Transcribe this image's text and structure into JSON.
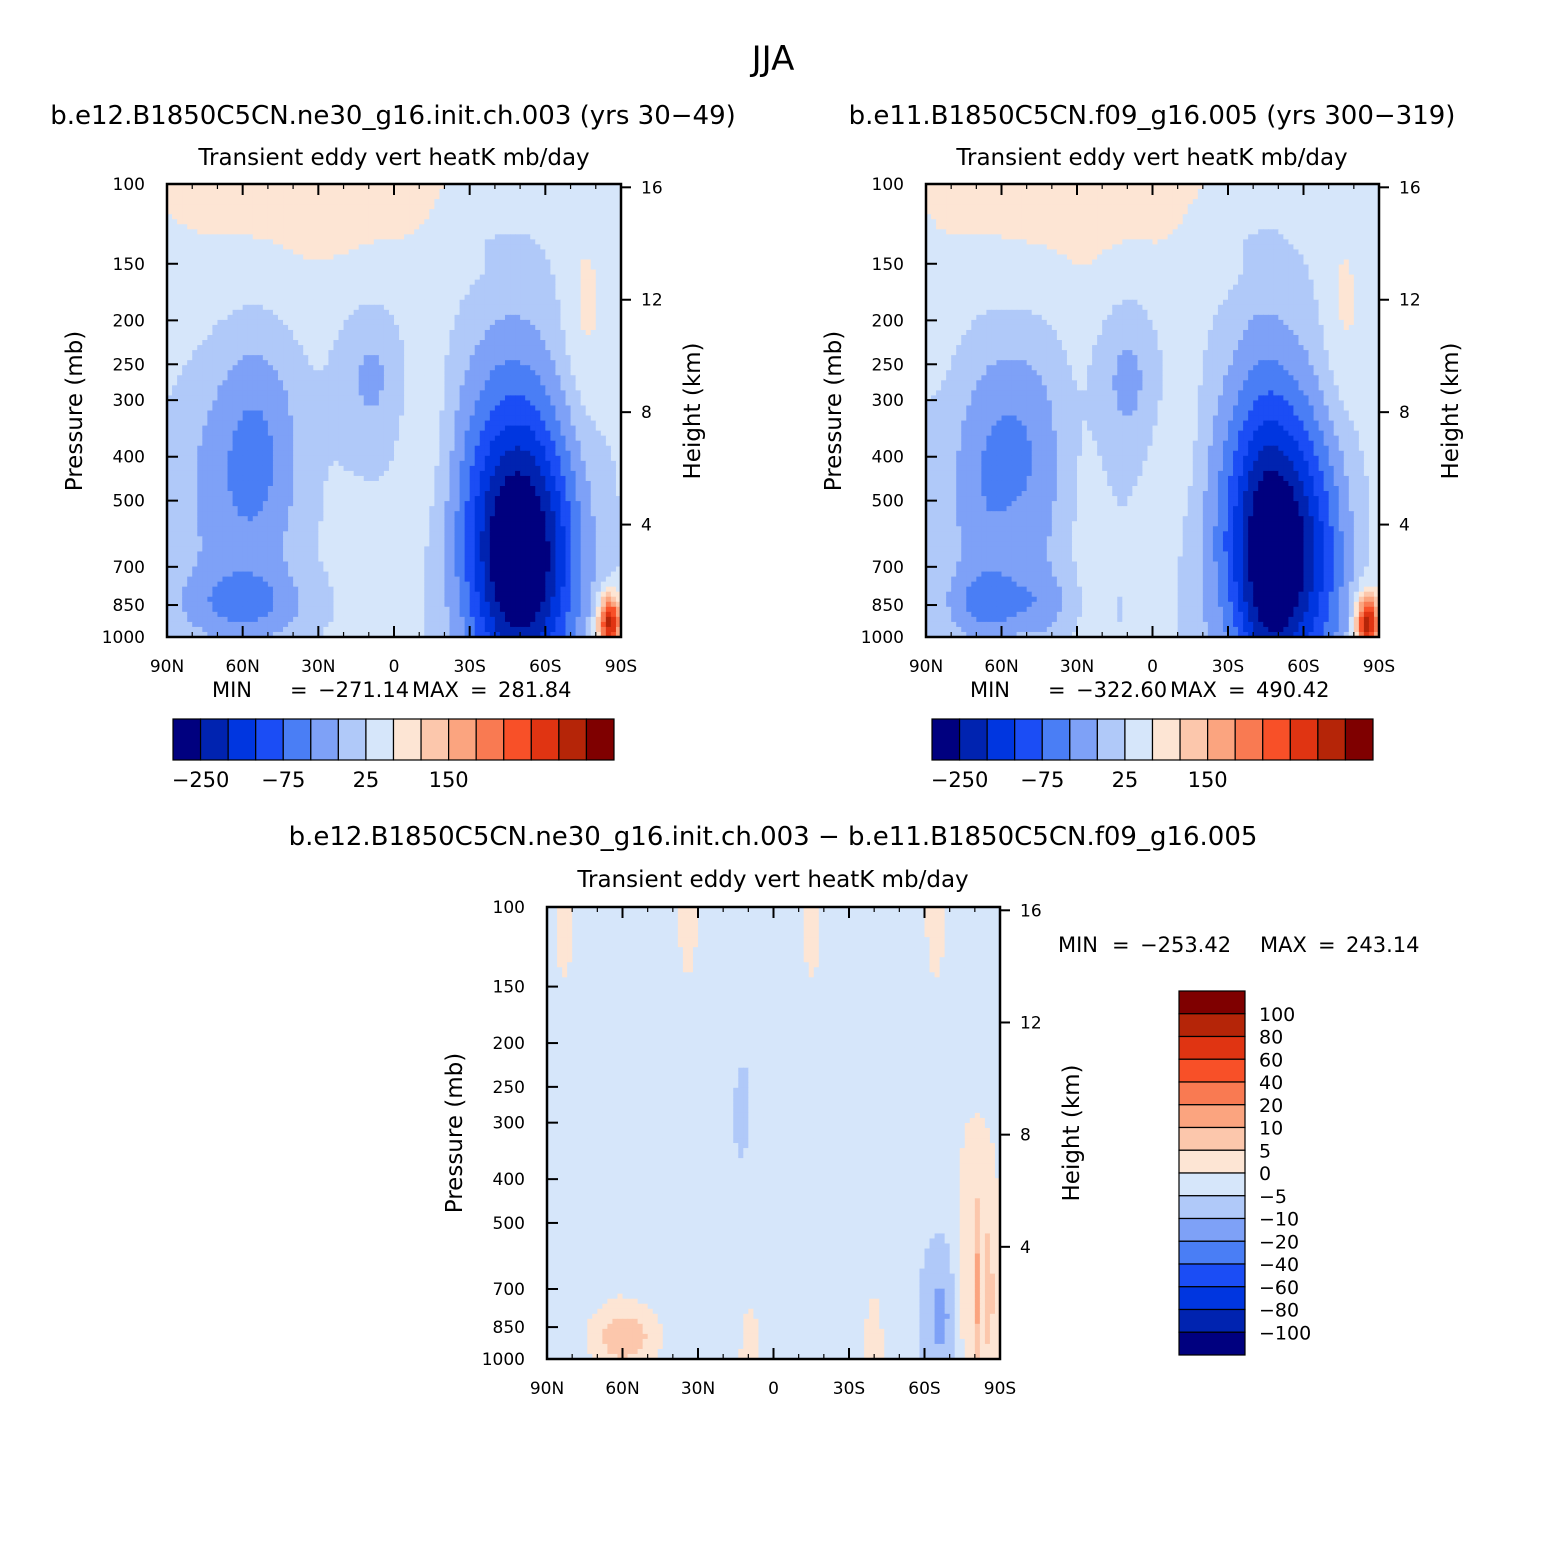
{
  "figure": {
    "title": "JJA"
  },
  "panel_label": "Transient eddy vert heatK mb/day",
  "axis_text": {
    "ylabel_left": "Pressure (mb)",
    "ylabel_right": "Height (km)",
    "min_label": "MIN",
    "max_label": "MAX",
    "eq": "="
  },
  "colors": {
    "full": [
      "#00007f",
      "#0023b0",
      "#0036e0",
      "#1b4df5",
      "#4a7ef5",
      "#7ea1f7",
      "#b0c9f9",
      "#d6e6fa",
      "#fde5d4",
      "#fcc7ac",
      "#fba47f",
      "#f97a52",
      "#f85028",
      "#e03412",
      "#b52508",
      "#7f0000"
    ],
    "diff": [
      "#00007f",
      "#0023b0",
      "#0036e0",
      "#1b4df5",
      "#4a7ef5",
      "#7ea1f7",
      "#b0c9f9",
      "#d6e6fa",
      "#fde5d4",
      "#fcc7ac",
      "#fba47f",
      "#f97a52",
      "#f85028",
      "#e03412",
      "#b52508",
      "#7f0000"
    ]
  },
  "chart_data": [
    {
      "type": "heatmap",
      "subtitle": "b.e12.B1850C5CN.ne30_g16.init.ch.003 (yrs 30−49)",
      "title": "Transient eddy vert heatK mb/day",
      "xlabel": "",
      "ylabel": "Pressure (mb)",
      "ylabel_right": "Height (km)",
      "x_ticks": [
        "90N",
        "60N",
        "30N",
        "0",
        "30S",
        "60S",
        "90S"
      ],
      "y_ticks": [
        100,
        150,
        200,
        250,
        300,
        400,
        500,
        700,
        850,
        1000
      ],
      "y_ticks_right": [
        4,
        8,
        12,
        16
      ],
      "min": "−271.14",
      "max": "281.84",
      "colorbar_labels": [
        "−250",
        "−75",
        "25",
        "150"
      ],
      "grid": false,
      "legend": "bottom"
    },
    {
      "type": "heatmap",
      "subtitle": "b.e11.B1850C5CN.f09_g16.005 (yrs 300−319)",
      "title": "Transient eddy vert heatK mb/day",
      "xlabel": "",
      "ylabel": "Pressure (mb)",
      "ylabel_right": "Height (km)",
      "x_ticks": [
        "90N",
        "60N",
        "30N",
        "0",
        "30S",
        "60S",
        "90S"
      ],
      "y_ticks": [
        100,
        150,
        200,
        250,
        300,
        400,
        500,
        700,
        850,
        1000
      ],
      "y_ticks_right": [
        4,
        8,
        12,
        16
      ],
      "min": "−322.60",
      "max": "490.42",
      "colorbar_labels": [
        "−250",
        "−75",
        "25",
        "150"
      ],
      "grid": false,
      "legend": "bottom"
    },
    {
      "type": "heatmap",
      "subtitle": "b.e12.B1850C5CN.ne30_g16.init.ch.003 − b.e11.B1850C5CN.f09_g16.005",
      "title": "Transient eddy vert heatK mb/day",
      "xlabel": "",
      "ylabel": "Pressure (mb)",
      "ylabel_right": "Height (km)",
      "x_ticks": [
        "90N",
        "60N",
        "30N",
        "0",
        "30S",
        "60S",
        "90S"
      ],
      "y_ticks": [
        100,
        150,
        200,
        250,
        300,
        400,
        500,
        700,
        850,
        1000
      ],
      "y_ticks_right": [
        4,
        8,
        12,
        16
      ],
      "min": "−253.42",
      "max": "243.14",
      "colorbar_labels": [
        "100",
        "80",
        "60",
        "40",
        "20",
        "10",
        "5",
        "0",
        "−5",
        "−10",
        "−20",
        "−40",
        "−60",
        "−80",
        "−100"
      ],
      "grid": false,
      "legend": "right"
    }
  ]
}
